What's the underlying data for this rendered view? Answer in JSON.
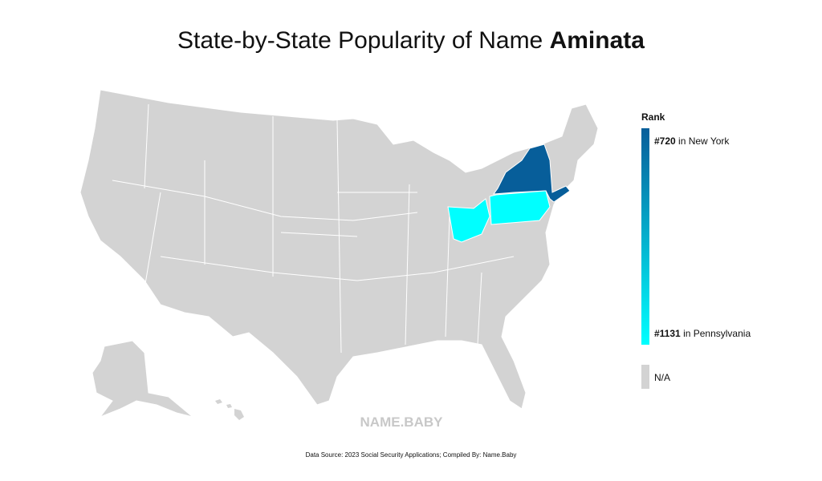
{
  "header": {
    "title": "State-by-State Popularity of Name",
    "name": "Aminata"
  },
  "map": {
    "na_color": "#d3d3d3",
    "border_color": "#ffffff"
  },
  "legend": {
    "title": "Rank",
    "top": {
      "rank": "#720",
      "label": "in New York",
      "color": "#075e9a"
    },
    "bottom": {
      "rank": "#1131",
      "label": "in Pennsylvania",
      "color": "#00ffff"
    },
    "na": {
      "label": "N/A"
    }
  },
  "watermark": "NAME.BABY",
  "footer": {
    "source": "Data Source: 2023 Social Security Applications; Compiled By: Name.Baby"
  }
}
